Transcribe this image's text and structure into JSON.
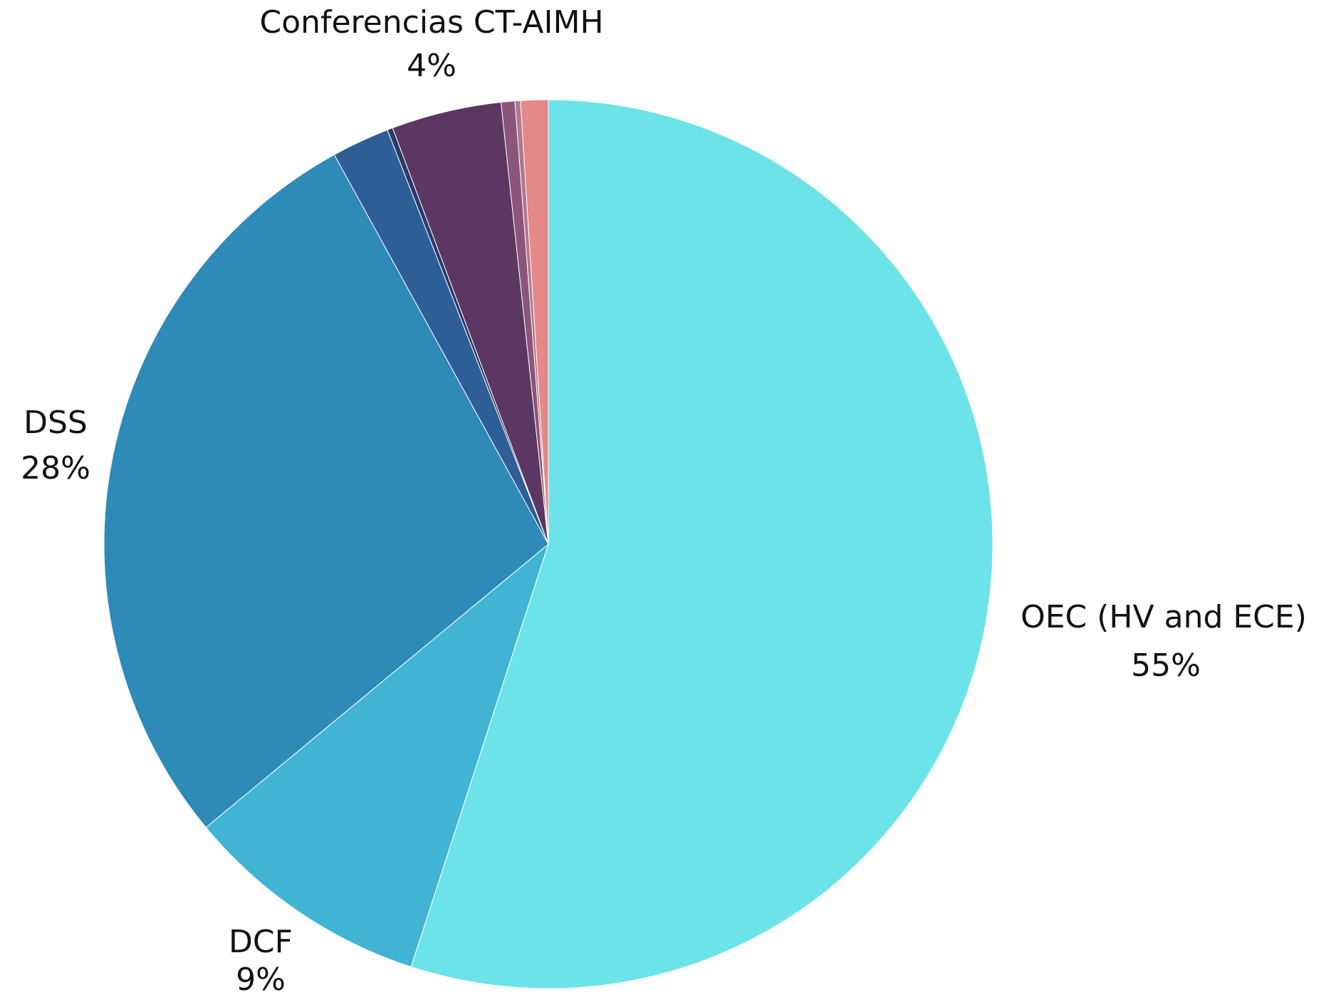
{
  "chart_data": {
    "type": "pie",
    "categories": [
      "OEC (HV and ECE)",
      "DCF",
      "DSS",
      null,
      null,
      "Conferencias CT-AIMH",
      null,
      null,
      null
    ],
    "values": [
      55,
      9,
      28,
      2.1,
      0.2,
      4,
      0.5,
      0.2,
      1
    ],
    "value_labels": [
      "55%",
      "9%",
      "28%",
      null,
      null,
      "4%",
      null,
      null,
      null
    ],
    "colors": [
      "#6ce3e8",
      "#42b4d3",
      "#2e8bb8",
      "#2e5e96",
      "#2a3a6e",
      "#5c3764",
      "#8a5578",
      "#b07890",
      "#e48888"
    ]
  }
}
